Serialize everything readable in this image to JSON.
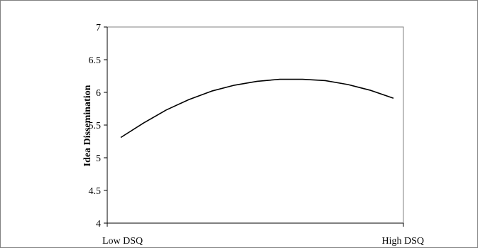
{
  "chart_data": {
    "type": "line",
    "title": "",
    "xlabel": "",
    "ylabel": "Idea Dissemination",
    "x_tick_labels": [
      "Low DSQ",
      "High DSQ"
    ],
    "yticks": [
      "7",
      "6.5",
      "6",
      "5.5",
      "5",
      "4.5",
      "4"
    ],
    "ylim": [
      4,
      7
    ],
    "grid": false,
    "legend": "none",
    "series": [
      {
        "values": [
          5.31,
          5.53,
          5.73,
          5.89,
          6.02,
          6.11,
          6.17,
          6.2,
          6.2,
          6.18,
          6.12,
          6.03,
          5.91
        ]
      }
    ],
    "colors": {
      "line": "#000000",
      "axis": "#000000",
      "frame": "#808080"
    }
  }
}
